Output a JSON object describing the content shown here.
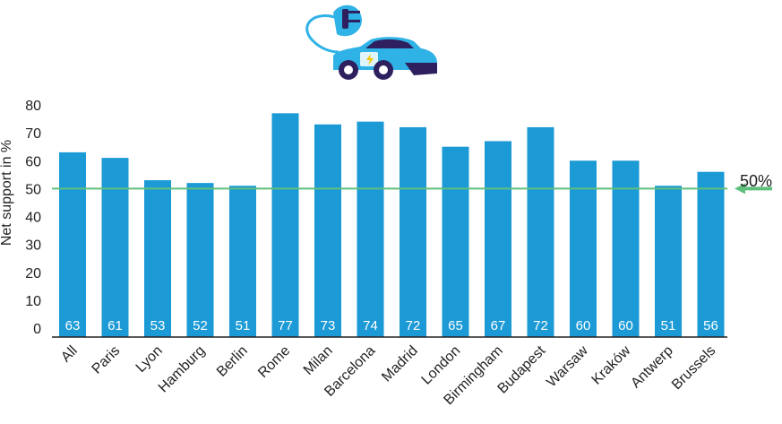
{
  "chart_data": {
    "type": "bar",
    "title": "",
    "xlabel": "",
    "ylabel": "Net support in %",
    "ylim": [
      0,
      80
    ],
    "yticks": [
      0,
      10,
      20,
      30,
      40,
      50,
      60,
      70,
      80
    ],
    "ytick_labels": [
      "0",
      "10",
      "20",
      "30",
      "40",
      "50",
      "60",
      "70",
      "80"
    ],
    "categories": [
      "All",
      "Paris",
      "Lyon",
      "Hamburg",
      "Berlin",
      "Rome",
      "Milan",
      "Barcelona",
      "Madrid",
      "London",
      "Birmingham",
      "Budapest",
      "Warsaw",
      "Kraków",
      "Antwerp",
      "Brussels"
    ],
    "values": [
      63,
      61,
      53,
      52,
      51,
      77,
      73,
      74,
      72,
      65,
      67,
      72,
      60,
      60,
      51,
      56
    ],
    "data_labels": [
      "63",
      "61",
      "53",
      "52",
      "51",
      "77",
      "73",
      "74",
      "72",
      "65",
      "67",
      "72",
      "60",
      "60",
      "51",
      "56"
    ],
    "grid": false,
    "reference_line": {
      "value": 50,
      "label": "50%"
    },
    "colors": {
      "bar": "#1b9ad6",
      "reference_line": "#5fbf7c",
      "car_body": "#2fb2e6",
      "car_dark": "#2e1f5e"
    },
    "icon": "electric-car-icon"
  }
}
